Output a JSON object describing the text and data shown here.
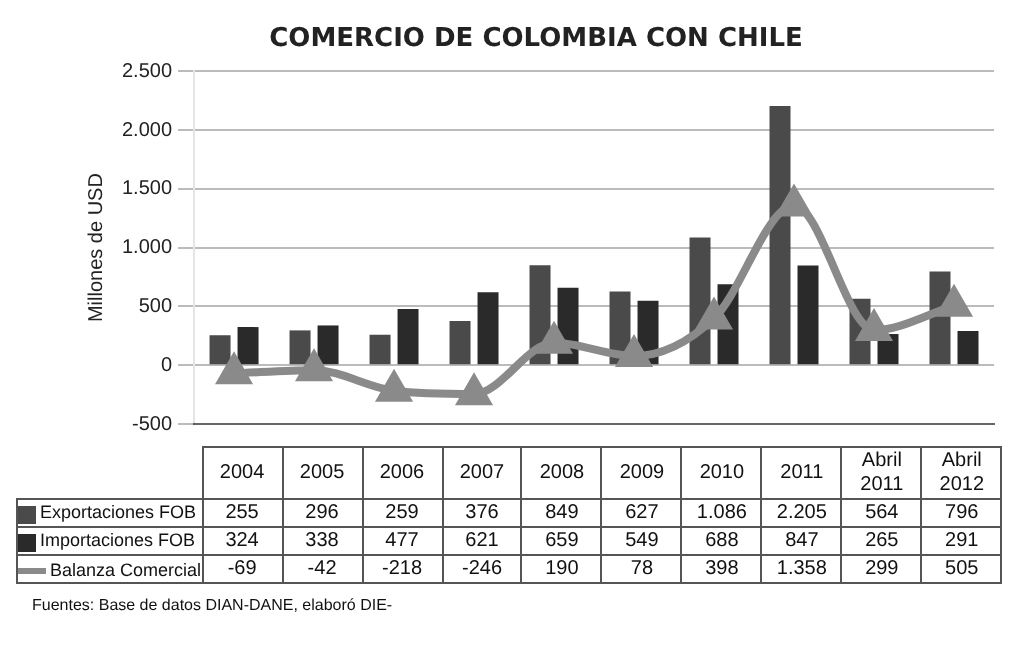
{
  "chart_data": {
    "type": "bar",
    "title": "COMERCIO DE COLOMBIA CON CHILE",
    "ylabel": "Millones de USD",
    "categories": [
      "2004",
      "2005",
      "2006",
      "2007",
      "2008",
      "2009",
      "2010",
      "2011",
      "Abril 2011",
      "Abril 2012"
    ],
    "series": [
      {
        "name": "Exportaciones FOB",
        "color": "#4a4a4a",
        "values": [
          255,
          296,
          259,
          376,
          849,
          627,
          1086,
          2205,
          564,
          796
        ],
        "value_labels": [
          "255",
          "296",
          "259",
          "376",
          "849",
          "627",
          "1.086",
          "2.205",
          "564",
          "796"
        ]
      },
      {
        "name": "Importaciones FOB",
        "color": "#2a2a2a",
        "values": [
          324,
          338,
          477,
          621,
          659,
          549,
          688,
          847,
          265,
          291
        ],
        "value_labels": [
          "324",
          "338",
          "477",
          "621",
          "659",
          "549",
          "688",
          "847",
          "265",
          "291"
        ]
      },
      {
        "name": "Balanza Comercial",
        "type": "line",
        "color": "#8a8a8a",
        "marker": "triangle",
        "values": [
          -69,
          -42,
          -218,
          -246,
          190,
          78,
          398,
          1358,
          299,
          505
        ],
        "value_labels": [
          "-69",
          "-42",
          "-218",
          "-246",
          "190",
          "78",
          "398",
          "1.358",
          "299",
          "505"
        ]
      }
    ],
    "ylim": [
      -500,
      2500
    ],
    "yticks": [
      {
        "value": -500,
        "label": "-500"
      },
      0,
      500,
      {
        "value": 1000,
        "label": "1.000"
      },
      {
        "value": 1500,
        "label": "1.500"
      },
      {
        "value": 2000,
        "label": "2.000"
      },
      {
        "value": 2500,
        "label": "2.500"
      }
    ],
    "grid": "y",
    "legend": "bottom",
    "annotations": [
      "Fuentes: Base de datos DIAN-DANE, elaboró DIE-"
    ]
  }
}
